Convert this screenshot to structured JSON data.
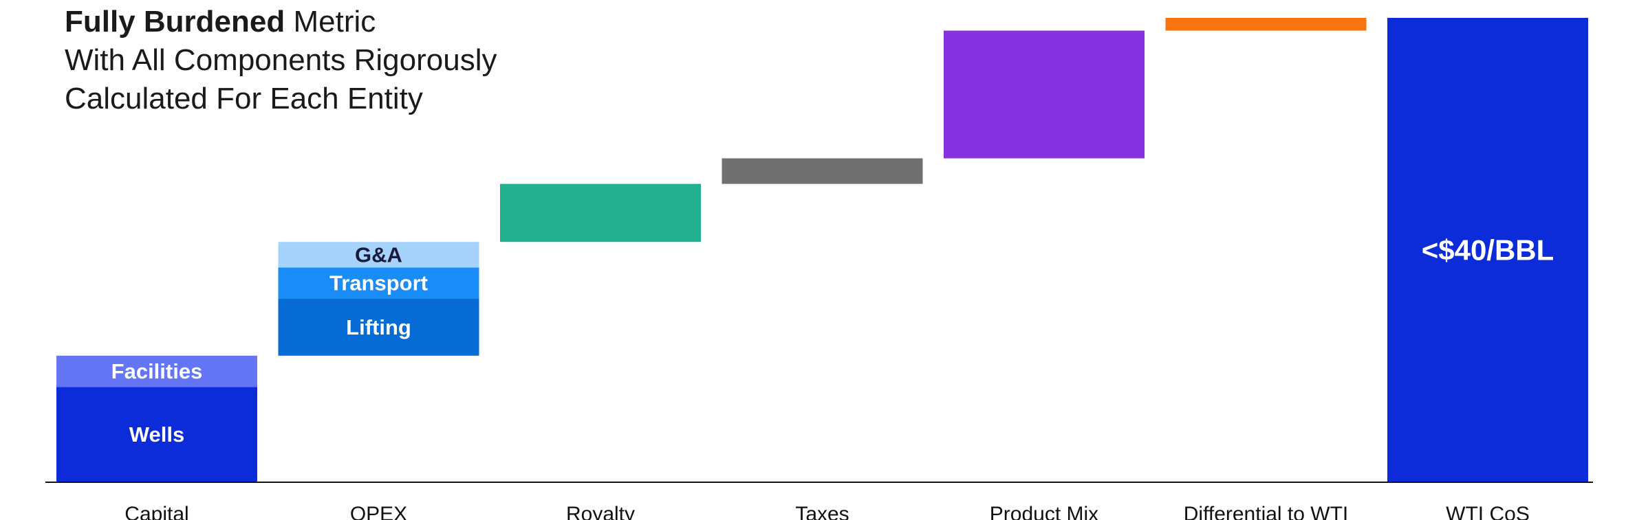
{
  "title": {
    "bold": "Fully Burdened",
    "rest": "Metric",
    "line2": "With All Components Rigorously",
    "line3": "Calculated For Each Entity"
  },
  "chart_data": {
    "type": "bar",
    "subtype": "waterfall",
    "categories": [
      "Capital",
      "OPEX",
      "Royalty",
      "Taxes",
      "Product Mix",
      "Differential to WTI",
      "WTI CoS"
    ],
    "ylim": [
      0,
      40
    ],
    "grid": false,
    "legend": "none",
    "bars": [
      {
        "category": "Capital",
        "start": 0,
        "segments": [
          {
            "label": "Wells",
            "value": 8.2,
            "color": "#0c2bd9",
            "text_color": "#ffffff"
          },
          {
            "label": "Facilities",
            "value": 2.7,
            "color": "#6475f5",
            "text_color": "#ffffff"
          }
        ]
      },
      {
        "category": "OPEX",
        "start": 10.9,
        "segments": [
          {
            "label": "Lifting",
            "value": 4.9,
            "color": "#066bd4",
            "text_color": "#ffffff"
          },
          {
            "label": "Transport",
            "value": 2.7,
            "color": "#1a8cf7",
            "text_color": "#ffffff"
          },
          {
            "label": "G&A",
            "value": 2.2,
            "color": "#a6d3fb",
            "text_color": "#1a1a3a"
          }
        ]
      },
      {
        "category": "Royalty",
        "start": 20.7,
        "segments": [
          {
            "label": "",
            "value": 5.0,
            "color": "#23b08e",
            "text_color": "#ffffff"
          }
        ]
      },
      {
        "category": "Taxes",
        "start": 25.7,
        "segments": [
          {
            "label": "",
            "value": 2.2,
            "color": "#707070",
            "text_color": "#ffffff"
          }
        ]
      },
      {
        "category": "Product Mix",
        "start": 27.9,
        "segments": [
          {
            "label": "",
            "value": 11.0,
            "color": "#8632e1",
            "text_color": "#ffffff"
          }
        ]
      },
      {
        "category": "Differential to WTI",
        "start": 38.9,
        "segments": [
          {
            "label": "",
            "value": 1.1,
            "color": "#f97410",
            "text_color": "#ffffff"
          }
        ]
      },
      {
        "category": "WTI CoS",
        "start": 0,
        "segments": [
          {
            "label": "<$40/BBL",
            "value": 40.0,
            "color": "#0c2bd9",
            "text_color": "#ffffff"
          }
        ]
      }
    ]
  }
}
